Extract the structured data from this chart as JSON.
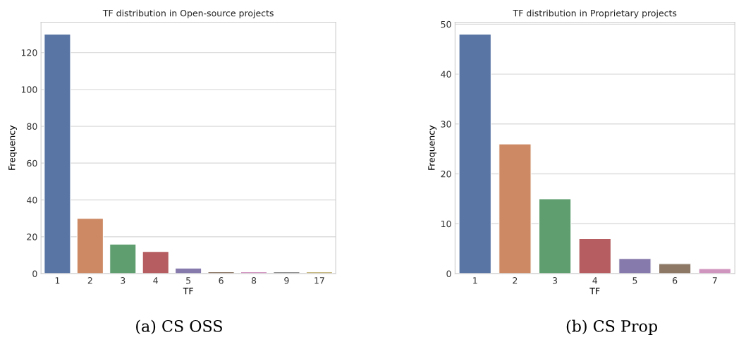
{
  "chart_data": [
    {
      "type": "bar",
      "title": "TF distribution in Open-source projects",
      "xlabel": "TF",
      "ylabel": "Frequency",
      "categories": [
        "1",
        "2",
        "3",
        "4",
        "5",
        "6",
        "8",
        "9",
        "17"
      ],
      "values": [
        130,
        30,
        16,
        12,
        3,
        1,
        1,
        1,
        1
      ],
      "colors": [
        "#5875a4",
        "#cc8963",
        "#5f9e6e",
        "#b55d60",
        "#857aab",
        "#8d7866",
        "#d095bf",
        "#8c8c8c",
        "#c4b67c"
      ],
      "ylim": [
        0,
        136.5
      ],
      "yticks": [
        0,
        20,
        40,
        60,
        80,
        100,
        120
      ],
      "grid": "y",
      "legend": false,
      "annotations": [
        "(a) CS OSS"
      ]
    },
    {
      "type": "bar",
      "title": "TF distribution in Proprietary projects",
      "xlabel": "TF",
      "ylabel": "Frequency",
      "categories": [
        "1",
        "2",
        "3",
        "4",
        "5",
        "6",
        "7"
      ],
      "values": [
        48,
        26,
        15,
        7,
        3,
        2,
        1
      ],
      "colors": [
        "#5875a4",
        "#cc8963",
        "#5f9e6e",
        "#b55d60",
        "#857aab",
        "#8d7866",
        "#d095bf"
      ],
      "ylim": [
        0,
        50.4
      ],
      "yticks": [
        0,
        10,
        20,
        30,
        40,
        50
      ],
      "grid": "y",
      "legend": false,
      "annotations": [
        "(b) CS Prop"
      ]
    }
  ]
}
